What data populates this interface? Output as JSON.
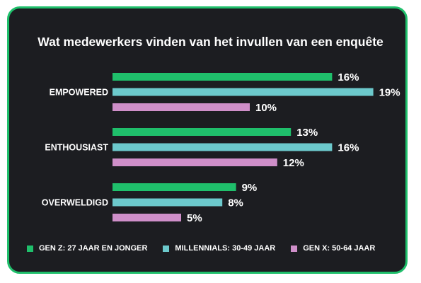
{
  "chart_data": {
    "type": "bar",
    "orientation": "horizontal",
    "title": "Wat medewerkers vinden van het invullen van een enquête",
    "categories": [
      "EMPOWERED",
      "ENTHOUSIAST",
      "OVERWELDIGD"
    ],
    "series": [
      {
        "name": "GEN Z: 27 JAAR EN JONGER",
        "color": "#1fbf6b",
        "values": [
          16,
          13,
          9
        ]
      },
      {
        "name": "MILLENNIALS: 30-49 JAAR",
        "color": "#6cc9cc",
        "values": [
          19,
          16,
          8
        ]
      },
      {
        "name": "GEN X: 50-64 JAAR",
        "color": "#cf8fc9",
        "values": [
          10,
          12,
          5
        ]
      }
    ],
    "value_suffix": "%",
    "legend_position": "bottom",
    "grid": false
  },
  "colors": {
    "background": "#1c1d21",
    "border": "#1fbf6b",
    "text": "#ffffff"
  }
}
